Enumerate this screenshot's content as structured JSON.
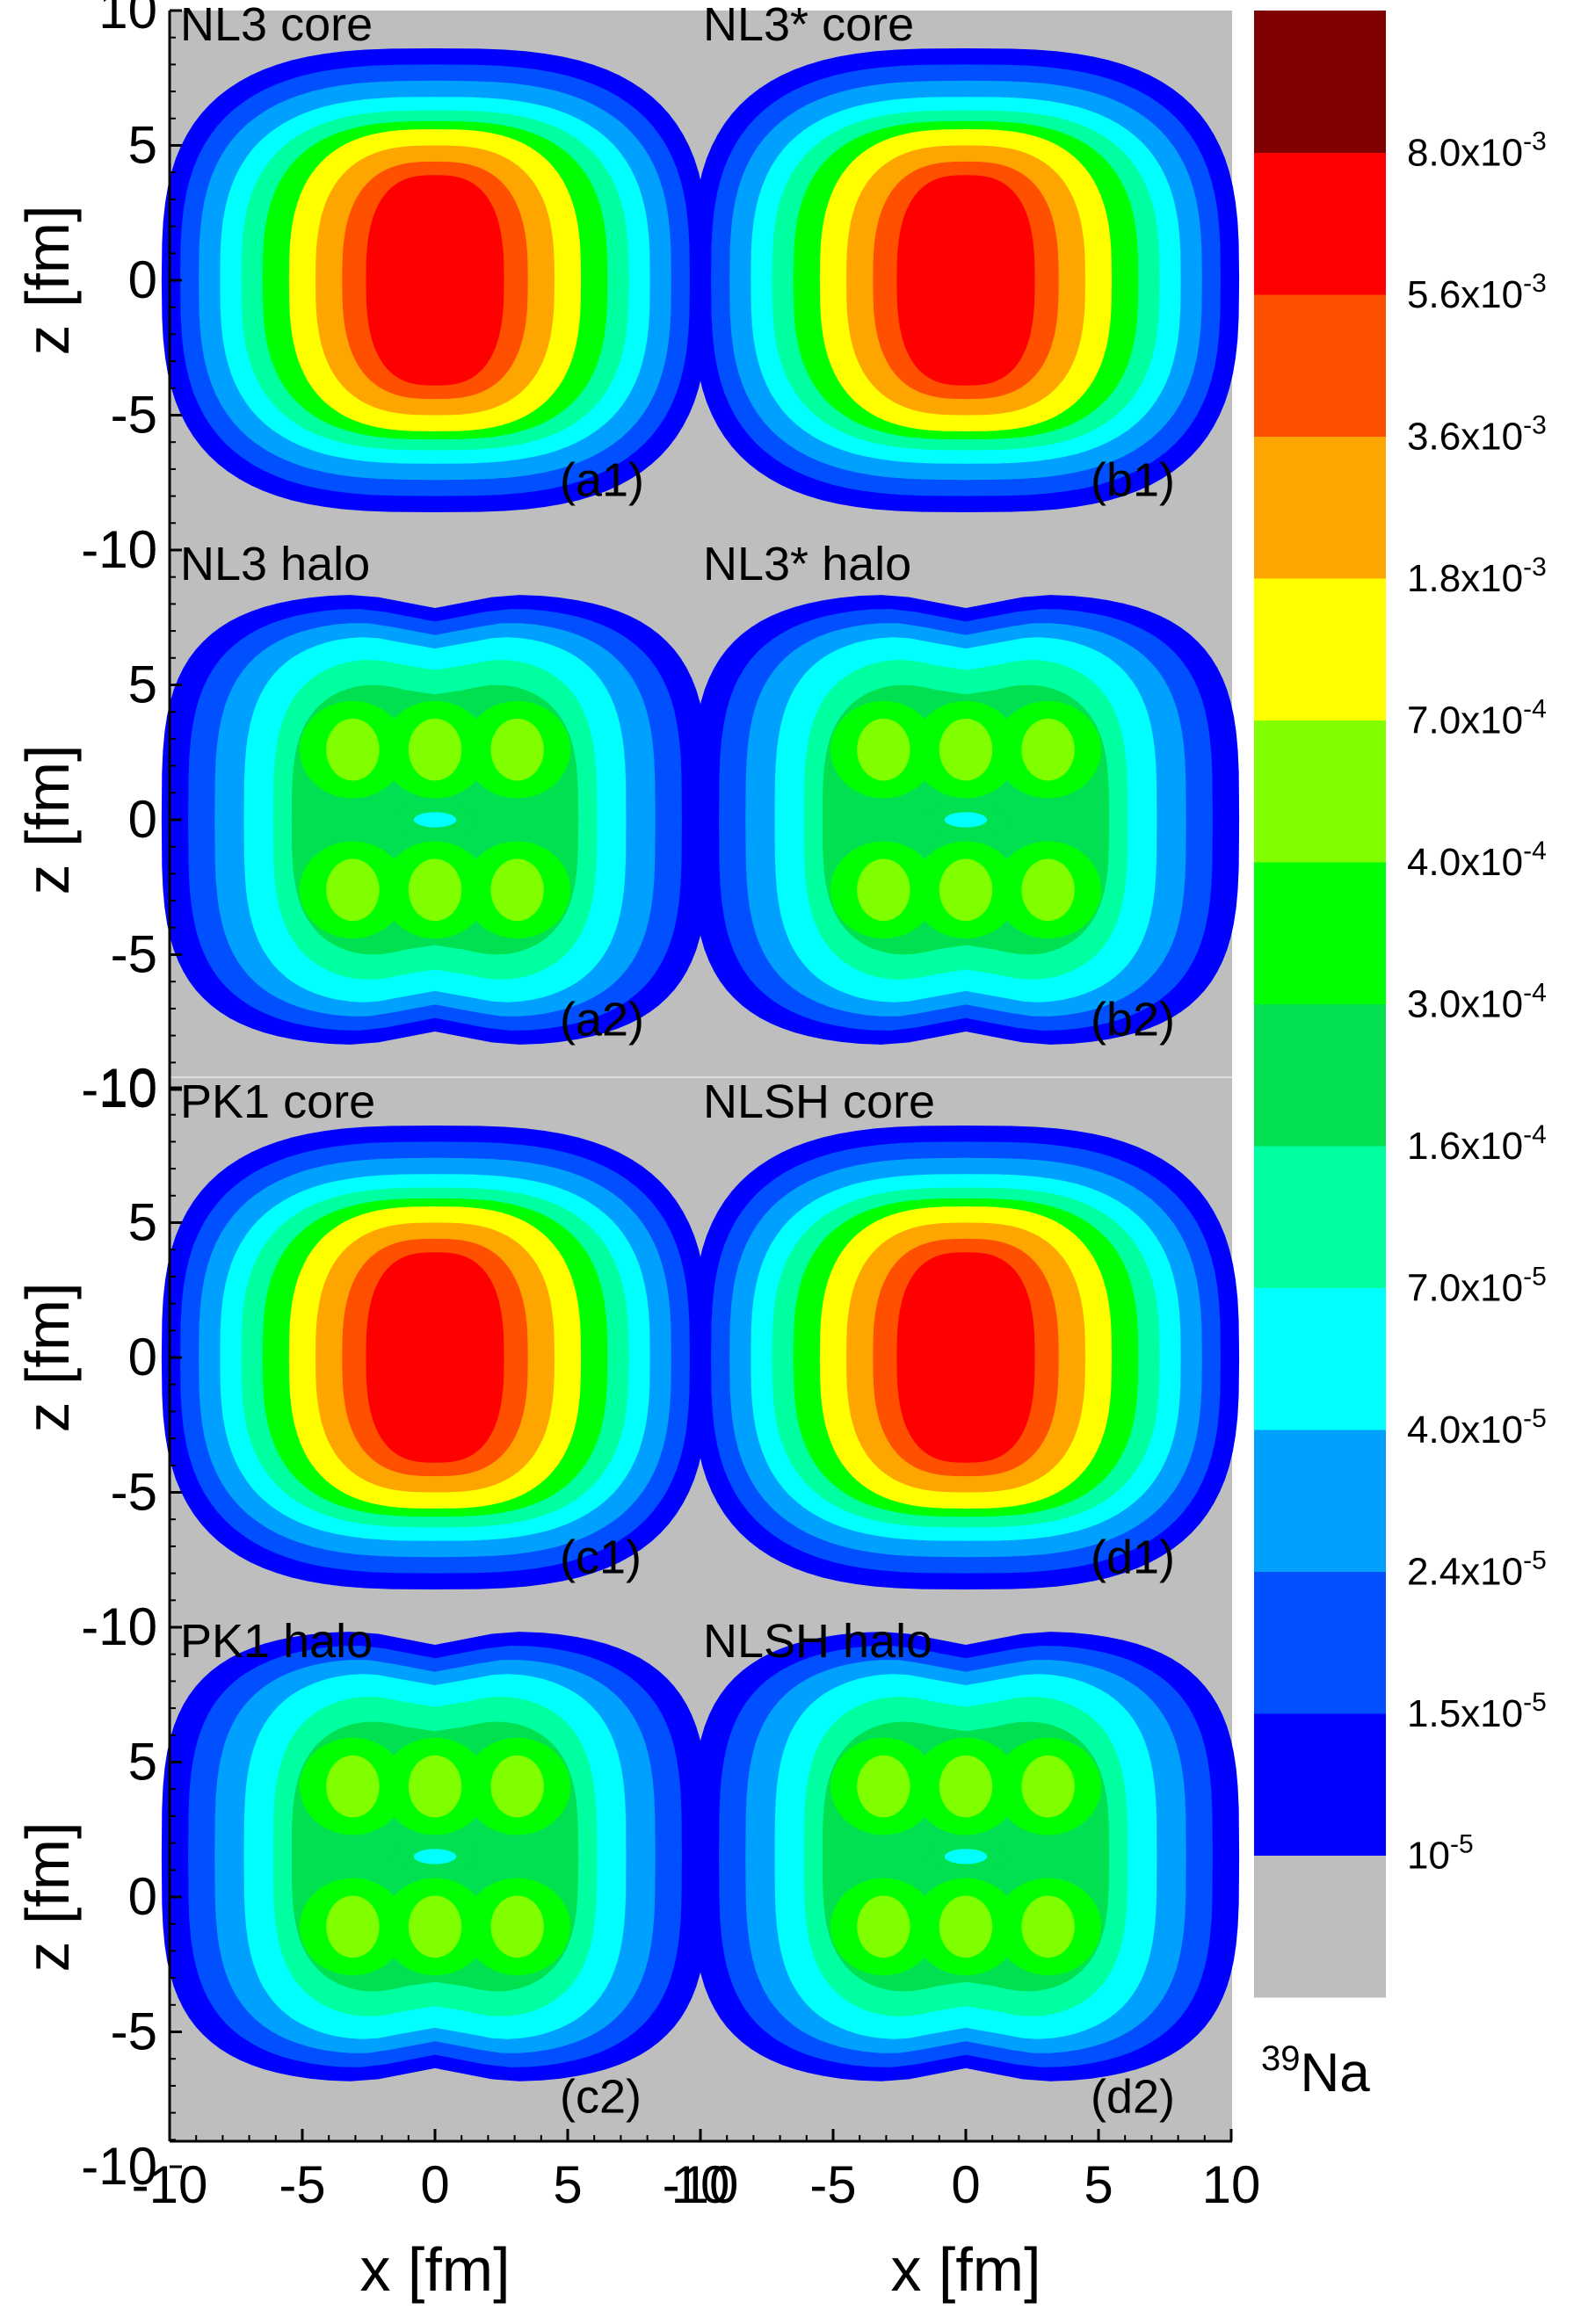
{
  "chart_data": {
    "type": "heatmap",
    "nuclide": {
      "mass": "39",
      "symbol": "Na"
    },
    "xlabel": "x [fm]",
    "ylabel": "z [fm]",
    "xlim": [
      -10,
      10
    ],
    "ylim": [
      -10,
      10
    ],
    "x_ticks": [
      "-10",
      "-5",
      "0",
      "5",
      "10"
    ],
    "y_ticks": [
      "10",
      "5",
      "0",
      "-5",
      "-10"
    ],
    "colorbar": {
      "levels": [
        {
          "label": "",
          "color": "#bebebe"
        },
        {
          "label": "10",
          "exp": "-5",
          "color": "#0000ff"
        },
        {
          "label": "1.5x10",
          "exp": "-5",
          "color": "#0050ff"
        },
        {
          "label": "2.4x10",
          "exp": "-5",
          "color": "#00a0ff"
        },
        {
          "label": "4.0x10",
          "exp": "-5",
          "color": "#00ffff"
        },
        {
          "label": "7.0x10",
          "exp": "-5",
          "color": "#00ffa0"
        },
        {
          "label": "1.6x10",
          "exp": "-4",
          "color": "#00e050"
        },
        {
          "label": "3.0x10",
          "exp": "-4",
          "color": "#00ff00"
        },
        {
          "label": "4.0x10",
          "exp": "-4",
          "color": "#80ff00"
        },
        {
          "label": "7.0x10",
          "exp": "-4",
          "color": "#ffff00"
        },
        {
          "label": "1.8x10",
          "exp": "-3",
          "color": "#ffa500"
        },
        {
          "label": "3.6x10",
          "exp": "-3",
          "color": "#ff5000"
        },
        {
          "label": "5.6x10",
          "exp": "-3",
          "color": "#ff0000"
        },
        {
          "label": "8.0x10",
          "exp": "-3",
          "color": "#800000"
        }
      ]
    },
    "panels": [
      {
        "id": "a1",
        "title": "NL3 core",
        "tag": "(a1)",
        "kind": "core",
        "col": 0,
        "row": 0,
        "zc": 0.0
      },
      {
        "id": "b1",
        "title": "NL3* core",
        "tag": "(b1)",
        "kind": "core",
        "col": 1,
        "row": 0,
        "zc": 0.0
      },
      {
        "id": "a2",
        "title": "NL3 halo",
        "tag": "(a2)",
        "kind": "halo",
        "col": 0,
        "row": 1,
        "zc": 0.0
      },
      {
        "id": "b2",
        "title": "NL3* halo",
        "tag": "(b2)",
        "kind": "halo",
        "col": 1,
        "row": 1,
        "zc": 0.0
      },
      {
        "id": "c1",
        "title": "PK1 core",
        "tag": "(c1)",
        "kind": "core",
        "col": 0,
        "row": 2,
        "zc": 0.0
      },
      {
        "id": "d1",
        "title": "NLSH core",
        "tag": "(d1)",
        "kind": "core",
        "col": 1,
        "row": 2,
        "zc": 0.0
      },
      {
        "id": "c2",
        "title": "PK1 halo",
        "tag": "(c2)",
        "kind": "halo",
        "col": 0,
        "row": 3,
        "zc": 1.5
      },
      {
        "id": "d2",
        "title": "NLSH halo",
        "tag": "(d2)",
        "kind": "halo",
        "col": 1,
        "row": 3,
        "zc": 1.5
      }
    ]
  }
}
